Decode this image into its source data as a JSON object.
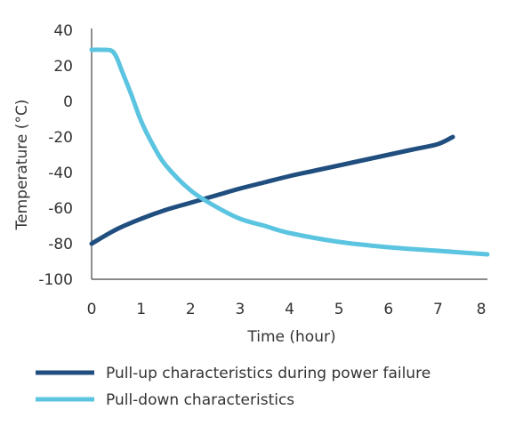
{
  "chart_data": {
    "type": "line",
    "xlabel": "Time (hour)",
    "ylabel": "Temperature (°C)",
    "xlim": [
      0,
      8
    ],
    "ylim": [
      -100,
      40
    ],
    "xticks": [
      0,
      1,
      2,
      3,
      4,
      5,
      6,
      7,
      8
    ],
    "yticks": [
      40,
      20,
      0,
      -20,
      -40,
      -60,
      -80,
      -100
    ],
    "grid": false,
    "legend_position": "bottom",
    "series": [
      {
        "name": "Pull-up characteristics during power failure",
        "color": "#1f4e7f",
        "x": [
          0,
          0.5,
          1,
          1.5,
          2,
          2.5,
          3,
          3.5,
          4,
          4.5,
          5,
          5.5,
          6,
          6.5,
          7,
          7.3
        ],
        "y": [
          -80,
          -72,
          -66,
          -61,
          -57,
          -53,
          -49,
          -45.5,
          -42,
          -39,
          -36,
          -33,
          -30,
          -27,
          -24,
          -20
        ]
      },
      {
        "name": "Pull-down characteristics",
        "color": "#5bc4e0",
        "x": [
          0,
          0.2,
          0.4,
          0.5,
          0.6,
          0.8,
          1,
          1.25,
          1.5,
          2,
          2.5,
          3,
          3.5,
          4,
          5,
          6,
          7,
          8
        ],
        "y": [
          29,
          29,
          28.5,
          25,
          18,
          4,
          -11,
          -25,
          -36,
          -50,
          -59,
          -66,
          -70,
          -74,
          -79,
          -82,
          -84,
          -86
        ]
      }
    ]
  }
}
